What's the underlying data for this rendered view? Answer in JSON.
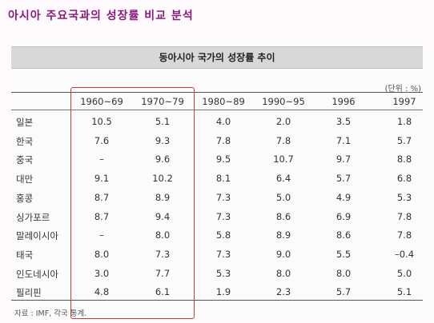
{
  "heading": "아시아 주요국과의 성장률 비교 분석",
  "table": {
    "title": "동아시아 국가의 성장률 추이",
    "unit": "(단위 : %)",
    "columns": [
      "1960~69",
      "1970~79",
      "1980~89",
      "1990~95",
      "1996",
      "1997"
    ],
    "rows": [
      {
        "country": "일본",
        "values": [
          "10.5",
          "5.1",
          "4.0",
          "2.0",
          "3.5",
          "1.8"
        ]
      },
      {
        "country": "한국",
        "values": [
          "7.6",
          "9.3",
          "7.8",
          "7.8",
          "7.1",
          "5.7"
        ]
      },
      {
        "country": "중국",
        "values": [
          "–",
          "9.6",
          "9.5",
          "10.7",
          "9.7",
          "8.8"
        ]
      },
      {
        "country": "대만",
        "values": [
          "9.1",
          "10.2",
          "8.1",
          "6.4",
          "5.7",
          "6.8"
        ]
      },
      {
        "country": "홍콩",
        "values": [
          "8.7",
          "8.9",
          "7.3",
          "5.0",
          "4.9",
          "5.3"
        ]
      },
      {
        "country": "싱가포르",
        "values": [
          "8.7",
          "9.4",
          "7.3",
          "8.6",
          "6.9",
          "7.8"
        ]
      },
      {
        "country": "말레이시아",
        "values": [
          "–",
          "8.0",
          "5.8",
          "8.9",
          "8.6",
          "7.8"
        ]
      },
      {
        "country": "태국",
        "values": [
          "8.0",
          "7.3",
          "7.3",
          "9.0",
          "5.5",
          "–0.4"
        ]
      },
      {
        "country": "인도네시아",
        "values": [
          "3.0",
          "7.7",
          "5.3",
          "8.0",
          "8.0",
          "5.0"
        ]
      },
      {
        "country": "필리핀",
        "values": [
          "4.8",
          "6.1",
          "1.9",
          "2.3",
          "5.7",
          "5.1"
        ]
      }
    ],
    "source": "자료 : IMF, 각국 통계."
  },
  "colors": {
    "heading": "#8a1a7a",
    "highlight_box": "#d23a3a",
    "title_band": "#d8d8d8"
  }
}
